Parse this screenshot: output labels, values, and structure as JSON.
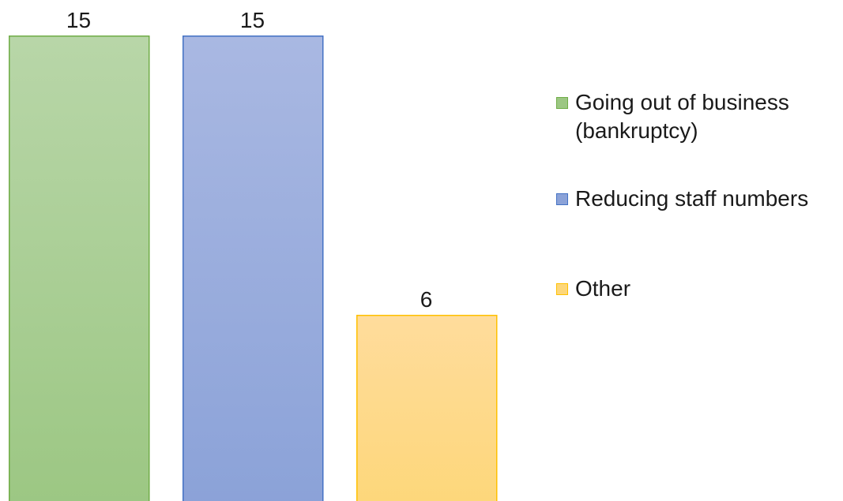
{
  "chart_data": {
    "type": "bar",
    "categories": [
      "Going out of business (bankruptcy)",
      "Reducing staff numbers",
      "Other"
    ],
    "values": [
      15,
      15,
      6
    ],
    "data_labels": [
      "15",
      "15",
      "6"
    ],
    "ylim": [
      0,
      16
    ],
    "grid": false,
    "legend_placement": "right",
    "colors": [
      {
        "top": "#b8d6a8",
        "bottom": "#9cc783",
        "border": "#70ad47"
      },
      {
        "top": "#a9b8e2",
        "bottom": "#8ba2d8",
        "border": "#4472c4"
      },
      {
        "top": "#ffdc9c",
        "bottom": "#fdd77a",
        "border": "#ffc000"
      }
    ]
  },
  "legend": {
    "items": [
      {
        "lines": [
          "Going out of business",
          "(bankruptcy)"
        ],
        "swatch_color": "#9cc783",
        "swatch_border": "#70ad47"
      },
      {
        "lines": [
          "Reducing staff numbers"
        ],
        "swatch_color": "#8ba2d8",
        "swatch_border": "#4472c4"
      },
      {
        "lines": [
          "Other"
        ],
        "swatch_color": "#fdd77a",
        "swatch_border": "#ffc000"
      }
    ]
  }
}
